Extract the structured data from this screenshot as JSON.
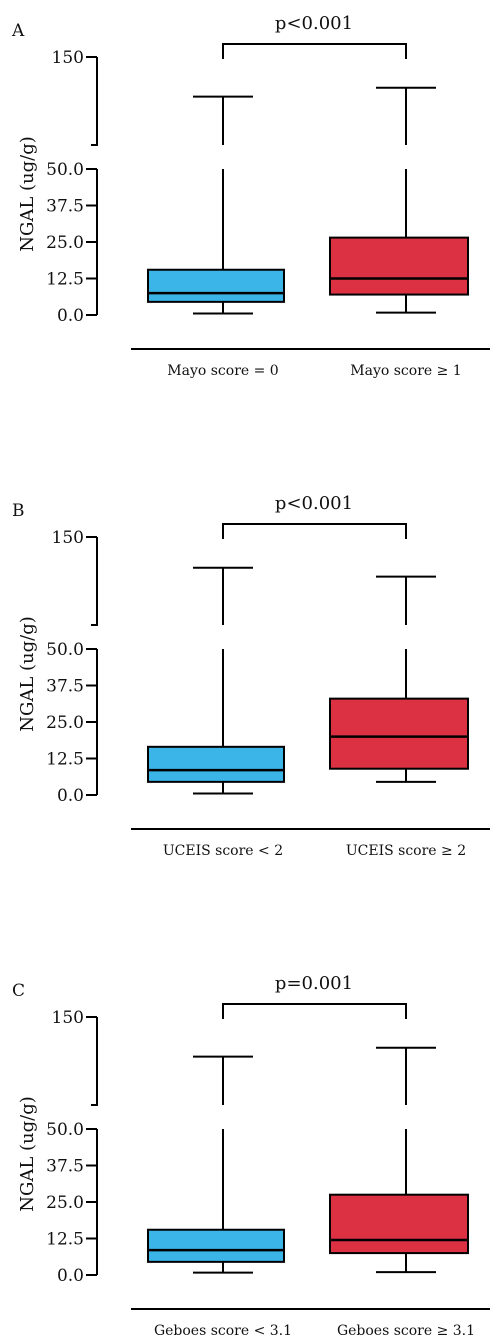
{
  "colors": {
    "box_left": "#3bb4e8",
    "box_right": "#dc3142",
    "line": "#000000"
  },
  "chart_data": [
    {
      "type": "box",
      "panel": "A",
      "pvalue": "p<0.001",
      "ylabel": "NGAL (ug/g)",
      "yticks": [
        "0.0",
        "12.5",
        "25.0",
        "37.5",
        "50.0",
        "150"
      ],
      "ylim_lower": [
        0,
        50
      ],
      "ylim_upper": [
        50,
        150
      ],
      "categories": [
        "Mayo score = 0",
        "Mayo score ≥ 1"
      ],
      "boxes": [
        {
          "whisker_low": 0.5,
          "q1": 4.5,
          "median": 7.5,
          "q3": 15.5,
          "whisker_high": 105
        },
        {
          "whisker_low": 0.8,
          "q1": 7,
          "median": 12.5,
          "q3": 26.5,
          "whisker_high": 115
        }
      ]
    },
    {
      "type": "box",
      "panel": "B",
      "pvalue": "p<0.001",
      "ylabel": "NGAL (ug/g)",
      "yticks": [
        "0.0",
        "12.5",
        "25.0",
        "37.5",
        "50.0",
        "150"
      ],
      "ylim_lower": [
        0,
        50
      ],
      "ylim_upper": [
        50,
        150
      ],
      "categories": [
        "UCEIS score < 2",
        "UCEIS score ≥ 2"
      ],
      "boxes": [
        {
          "whisker_low": 0.5,
          "q1": 4.5,
          "median": 8.5,
          "q3": 16.5,
          "whisker_high": 115
        },
        {
          "whisker_low": 4.5,
          "q1": 9,
          "median": 20,
          "q3": 33,
          "whisker_high": 105
        }
      ]
    },
    {
      "type": "box",
      "panel": "C",
      "pvalue": "p=0.001",
      "ylabel": "NGAL (ug/g)",
      "yticks": [
        "0.0",
        "12.5",
        "25.0",
        "37.5",
        "50.0",
        "150"
      ],
      "ylim_lower": [
        0,
        50
      ],
      "ylim_upper": [
        50,
        150
      ],
      "categories": [
        "Geboes score < 3.1",
        "Geboes score ≥ 3.1"
      ],
      "boxes": [
        {
          "whisker_low": 0.8,
          "q1": 4.5,
          "median": 8.5,
          "q3": 15.5,
          "whisker_high": 105
        },
        {
          "whisker_low": 1,
          "q1": 7.5,
          "median": 12,
          "q3": 27.5,
          "whisker_high": 115
        }
      ]
    }
  ]
}
